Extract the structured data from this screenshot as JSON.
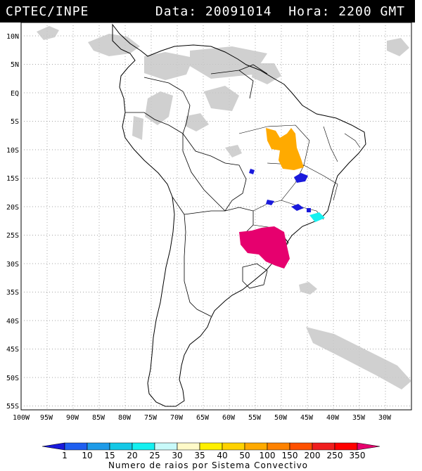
{
  "header": {
    "source": "CPTEC/INPE",
    "info_line": "Data: 20091014  Hora: 2200 GMT"
  },
  "map": {
    "lat_labels": [
      "10N",
      "5N",
      "EQ",
      "5S",
      "10S",
      "15S",
      "20S",
      "25S",
      "30S",
      "35S",
      "40S",
      "45S",
      "50S",
      "55S"
    ],
    "lon_labels": [
      "100W",
      "95W",
      "90W",
      "85W",
      "80W",
      "75W",
      "70W",
      "65W",
      "60W",
      "55W",
      "50W",
      "45W",
      "40W",
      "35W",
      "30W"
    ],
    "background_cloud_color": "#c8c8c8"
  },
  "legend": {
    "values": [
      "1",
      "10",
      "15",
      "20",
      "25",
      "30",
      "35",
      "40",
      "50",
      "100",
      "150",
      "200",
      "250",
      "350"
    ],
    "colors": [
      "#1a1adc",
      "#1f5ff0",
      "#1e9be8",
      "#14c8e6",
      "#14f0f0",
      "#c8fafa",
      "#fffac8",
      "#fff000",
      "#ffd200",
      "#ffaa00",
      "#ff8200",
      "#ff5000",
      "#f01e1e",
      "#ff0000",
      "#e6006e"
    ],
    "title": "Numero de raios por Sistema Convectivo"
  }
}
